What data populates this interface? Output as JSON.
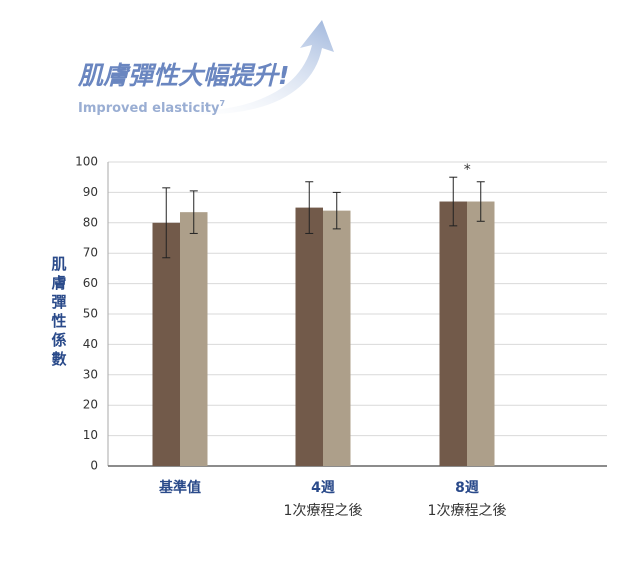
{
  "chart_data": {
    "type": "bar",
    "title": "肌膚彈性大幅提升!",
    "subtitle": "Improved elasticity",
    "subtitle_ref": "7",
    "y_label": "肌膚彈性係數",
    "categories": [
      [
        "基準值"
      ],
      [
        "4週",
        "1次療程之後"
      ],
      [
        "8週",
        "1次療程之後"
      ]
    ],
    "series": [
      {
        "color": "#725a4a",
        "values": [
          80,
          85,
          87
        ],
        "errors": [
          11.5,
          8.5,
          8
        ]
      },
      {
        "color": "#ad9f8a",
        "values": [
          83.5,
          84,
          87
        ],
        "errors": [
          7,
          6,
          6.5
        ]
      }
    ],
    "annotations": [
      {
        "text": "*",
        "category": 2,
        "series": 0
      }
    ],
    "ylim": [
      0,
      100
    ],
    "yticks": [
      0,
      10,
      20,
      30,
      40,
      50,
      60,
      70,
      80,
      90,
      100
    ],
    "grid": true
  }
}
